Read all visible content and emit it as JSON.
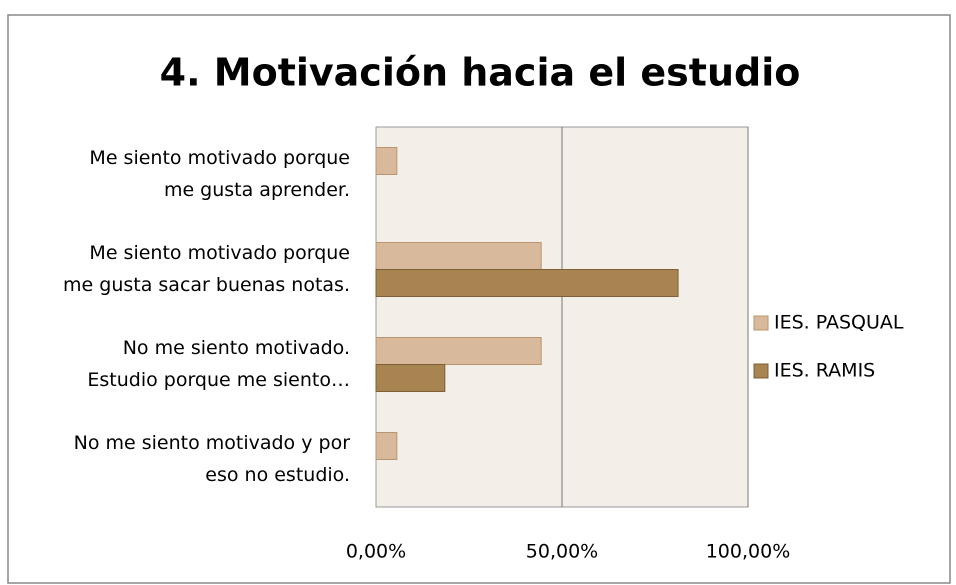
{
  "chart_data": {
    "type": "bar",
    "orientation": "horizontal",
    "title": "4. Motivación hacia el estudio",
    "categories": [
      [
        "Me siento motivado porque",
        "me gusta aprender."
      ],
      [
        "Me siento motivado porque",
        "me gusta sacar buenas notas."
      ],
      [
        "No me siento motivado.",
        "Estudio porque me siento…"
      ],
      [
        "No me siento motivado y por",
        "eso no estudio."
      ]
    ],
    "series": [
      {
        "name": "IES. PASQUAL",
        "color": "#d9b99b",
        "values": [
          5.6,
          44.4,
          44.4,
          5.6
        ]
      },
      {
        "name": "IES. RAMIS",
        "color": "#a88450",
        "values": [
          0,
          81.2,
          18.5,
          0
        ]
      }
    ],
    "xlim": [
      0,
      100
    ],
    "xticks": [
      {
        "value": 0,
        "label": "0,00%"
      },
      {
        "value": 50,
        "label": "50,00%"
      },
      {
        "value": 100,
        "label": "100,00%"
      }
    ],
    "grid": true,
    "legend": "right"
  }
}
